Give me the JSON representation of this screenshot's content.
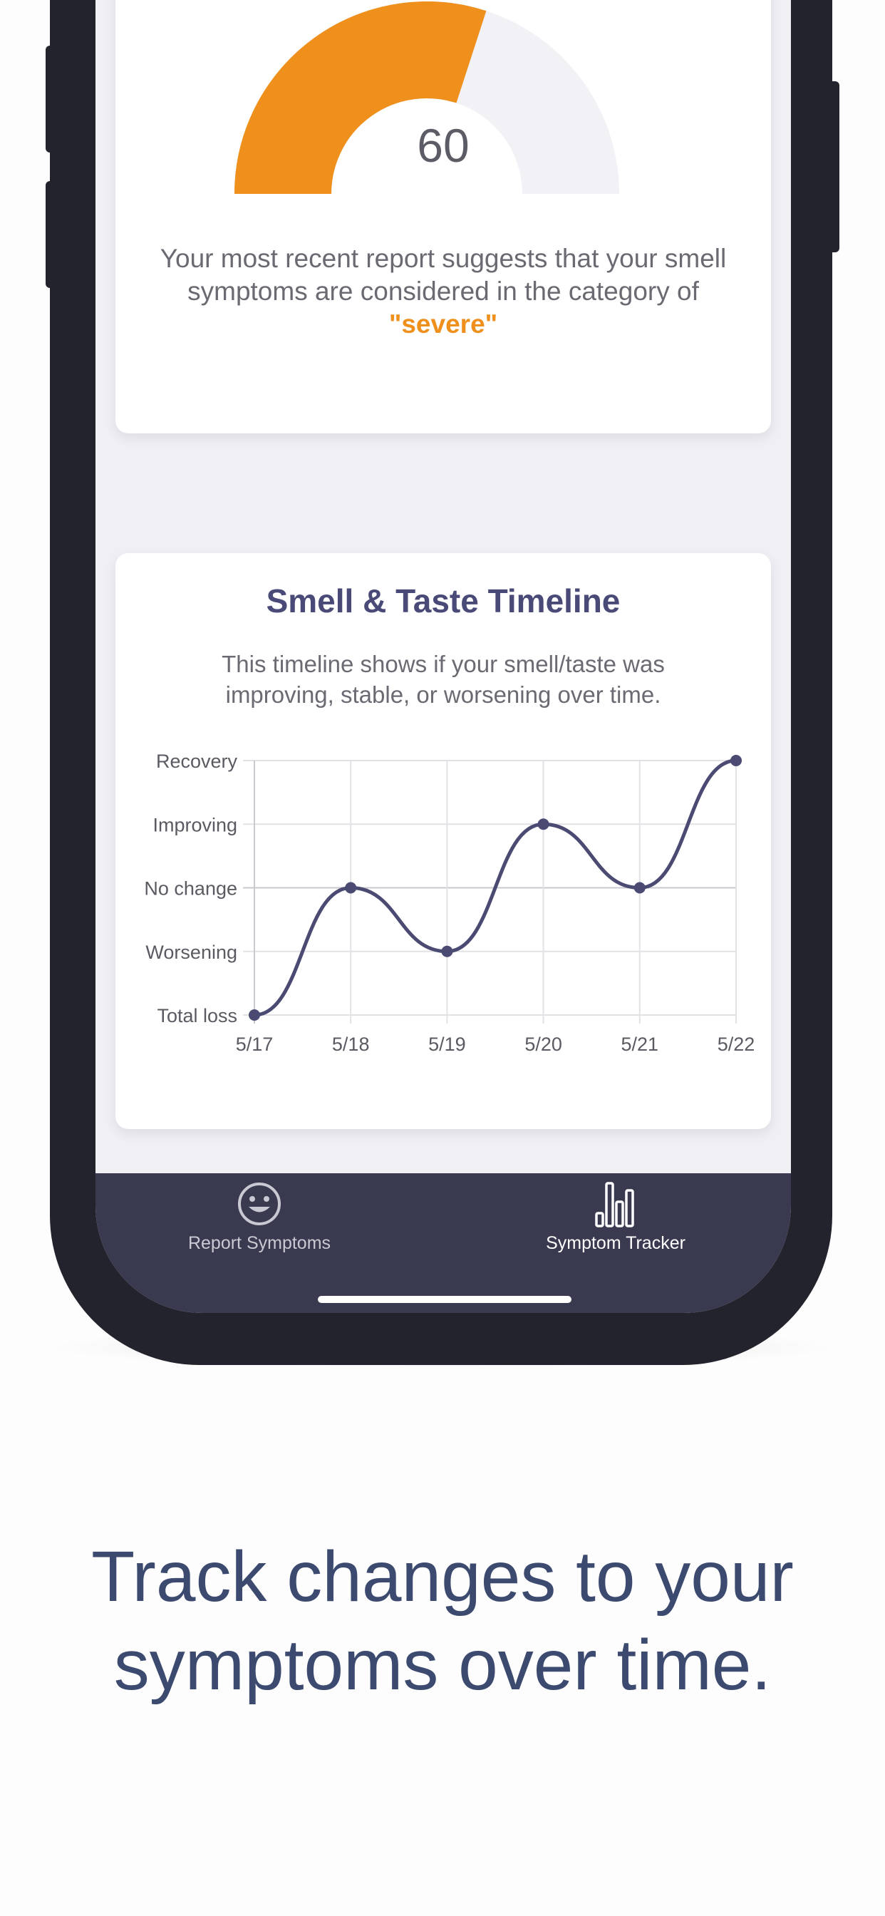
{
  "gauge": {
    "value": 60,
    "max": 100,
    "value_label": "60",
    "description": "Your most recent report suggests that your smell symptoms are considered in the category of",
    "category": "\"severe\"",
    "fill_color": "#ef8f1c",
    "track_color": "#f1f1f6"
  },
  "timeline": {
    "title": "Smell & Taste Timeline",
    "description": "This timeline shows if your smell/taste was improving, stable, or worsening over time."
  },
  "chart_data": {
    "type": "line",
    "title": "Smell & Taste Timeline",
    "categories": [
      "5/17",
      "5/18",
      "5/19",
      "5/20",
      "5/21",
      "5/22"
    ],
    "y_levels": [
      "Total loss",
      "Worsening",
      "No change",
      "Improving",
      "Recovery"
    ],
    "values": [
      "Total loss",
      "No change",
      "Worsening",
      "Improving",
      "No change",
      "Recovery"
    ],
    "line_color": "#4a4a72",
    "grid": true
  },
  "tabbar": {
    "tabs": [
      {
        "label": "Report Symptoms",
        "icon": "smiley-icon",
        "active": false
      },
      {
        "label": "Symptom Tracker",
        "icon": "bar-chart-icon",
        "active": true
      }
    ]
  },
  "tagline": {
    "line1": "Track changes to your",
    "line2": "symptoms over time."
  }
}
